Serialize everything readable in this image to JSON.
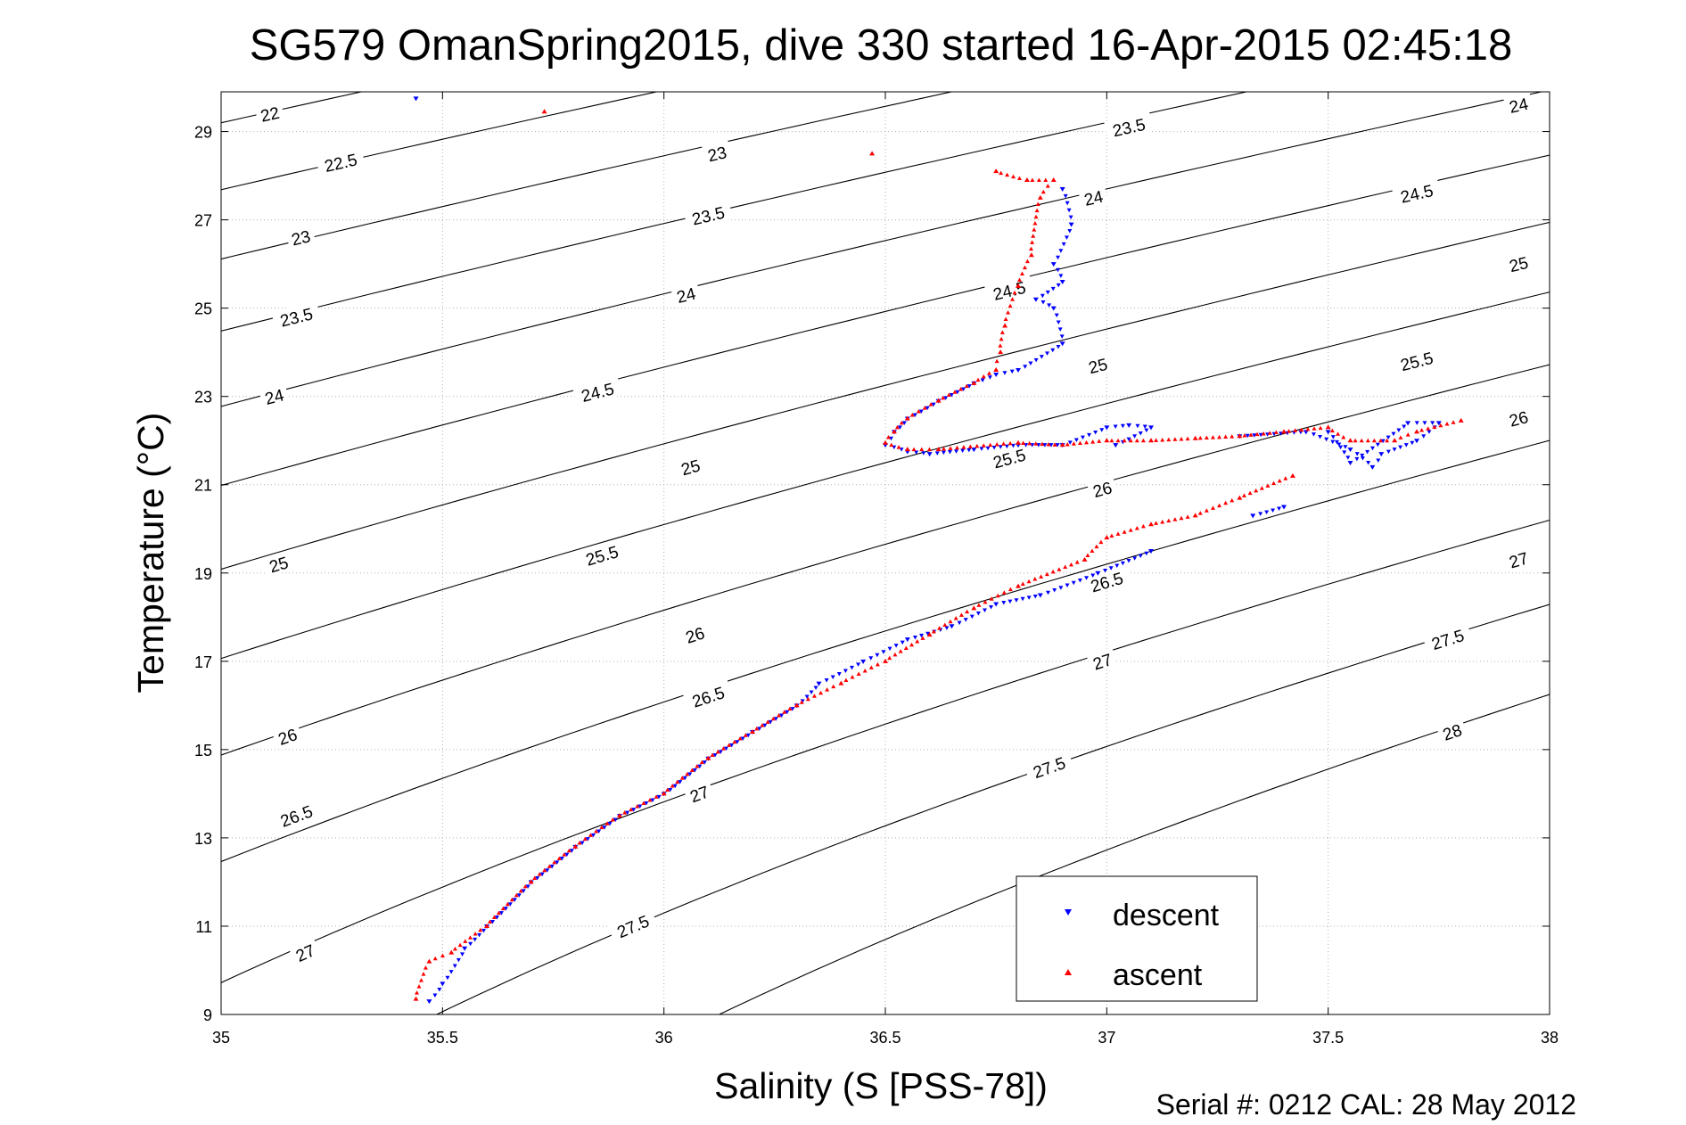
{
  "chart_data": {
    "type": "scatter",
    "title": "SG579 OmanSpring2015, dive 330 started 16-Apr-2015 02:45:18",
    "xlabel": "Salinity (S [PSS-78])",
    "ylabel": "Temperature (°C)",
    "footer": "Serial #: 0212  CAL: 28 May 2012",
    "xlim": [
      35,
      38
    ],
    "ylim": [
      9,
      29.9
    ],
    "xticks": [
      "35",
      "35.5",
      "36",
      "36.5",
      "37",
      "37.5",
      "38"
    ],
    "yticks": [
      "9",
      "11",
      "13",
      "15",
      "17",
      "19",
      "21",
      "23",
      "25",
      "27",
      "29"
    ],
    "grid": true,
    "legend_position": "bottom-right",
    "colors": {
      "descent": "#0000ff",
      "ascent": "#ff0000",
      "isopycnal": "#000000"
    },
    "isopycnals": [
      {
        "sigma": 22,
        "label": "22",
        "label_at": [
          35.11,
          29.4
        ]
      },
      {
        "sigma": 22.5,
        "label": "22.5",
        "label_at": [
          35.27,
          28.3
        ]
      },
      {
        "sigma": 23,
        "label": "23",
        "label_at": [
          35.18,
          26.6
        ],
        "label2": "23",
        "label2_at": [
          36.12,
          28.5
        ]
      },
      {
        "sigma": 23.5,
        "label": "23.5",
        "label_at": [
          35.17,
          24.8
        ],
        "label2": "23.5",
        "label2_at": [
          36.1,
          27.1
        ],
        "label3": "23.5",
        "label3_at": [
          37.05,
          29.1
        ]
      },
      {
        "sigma": 24,
        "label": "24",
        "label_at": [
          35.12,
          23.0
        ],
        "label2": "24",
        "label2_at": [
          36.05,
          25.3
        ],
        "label3": "24",
        "label3_at": [
          36.97,
          27.5
        ],
        "label4": "24",
        "label4_at": [
          37.93,
          29.6
        ]
      },
      {
        "sigma": 24.5,
        "label": "24.5",
        "label_at": [
          35.85,
          23.1
        ],
        "label2": "24.5",
        "label2_at": [
          36.78,
          25.4
        ],
        "label3": "24.5",
        "label3_at": [
          37.7,
          27.6
        ]
      },
      {
        "sigma": 25,
        "label": "25",
        "label_at": [
          35.13,
          19.2
        ],
        "label2": "25",
        "label2_at": [
          36.06,
          21.4
        ],
        "label3": "25",
        "label3_at": [
          36.98,
          23.7
        ],
        "label4": "25",
        "label4_at": [
          37.93,
          26.0
        ]
      },
      {
        "sigma": 25.5,
        "label": "25.5",
        "label_at": [
          35.86,
          19.4
        ],
        "label2": "25.5",
        "label2_at": [
          36.78,
          21.6
        ],
        "label3": "25.5",
        "label3_at": [
          37.7,
          23.8
        ]
      },
      {
        "sigma": 26,
        "label": "26",
        "label_at": [
          35.15,
          15.3
        ],
        "label2": "26",
        "label2_at": [
          36.07,
          17.6
        ],
        "label3": "26",
        "label3_at": [
          36.99,
          20.9
        ],
        "label4": "26",
        "label4_at": [
          37.93,
          22.5
        ]
      },
      {
        "sigma": 26.5,
        "label": "26.5",
        "label_at": [
          35.17,
          13.5
        ],
        "label2": "26.5",
        "label2_at": [
          36.1,
          16.2
        ],
        "label3": "26.5",
        "label3_at": [
          37.0,
          18.8
        ]
      },
      {
        "sigma": 27,
        "label": "27",
        "label_at": [
          35.19,
          10.4
        ],
        "label2": "27",
        "label2_at": [
          36.08,
          14.0
        ],
        "label3": "27",
        "label3_at": [
          36.99,
          17.0
        ],
        "label4": "27",
        "label4_at": [
          37.93,
          19.3
        ]
      },
      {
        "sigma": 27.5,
        "label": "27.5",
        "label_at": [
          35.93,
          11.0
        ],
        "label2": "27.5",
        "label2_at": [
          36.87,
          14.6
        ],
        "label3": "27.5",
        "label3_at": [
          37.77,
          17.5
        ]
      },
      {
        "sigma": 28,
        "label": "28",
        "label_at": [
          37.78,
          15.4
        ]
      }
    ],
    "series": [
      {
        "name": "descent",
        "marker": "triangle-down",
        "points": [
          [
            35.44,
            29.75
          ],
          [
            36.9,
            27.7
          ],
          [
            36.92,
            26.9
          ],
          [
            36.88,
            26.0
          ],
          [
            36.9,
            25.6
          ],
          [
            36.84,
            25.2
          ],
          [
            36.88,
            25.0
          ],
          [
            36.9,
            24.2
          ],
          [
            36.8,
            23.6
          ],
          [
            36.75,
            23.5
          ],
          [
            36.7,
            23.3
          ],
          [
            36.62,
            22.9
          ],
          [
            36.55,
            22.5
          ],
          [
            36.52,
            22.2
          ],
          [
            36.5,
            21.9
          ],
          [
            36.55,
            21.75
          ],
          [
            36.6,
            21.7
          ],
          [
            36.7,
            21.8
          ],
          [
            36.8,
            21.9
          ],
          [
            36.9,
            21.9
          ],
          [
            37.0,
            22.3
          ],
          [
            37.05,
            22.35
          ],
          [
            37.1,
            22.3
          ],
          [
            37.02,
            21.9
          ],
          [
            37.3,
            22.1
          ],
          [
            37.45,
            22.2
          ],
          [
            37.55,
            21.8
          ],
          [
            37.6,
            21.4
          ],
          [
            37.62,
            21.7
          ],
          [
            37.7,
            22.0
          ],
          [
            37.75,
            22.4
          ],
          [
            37.68,
            22.4
          ],
          [
            37.55,
            21.5
          ],
          [
            37.5,
            22.2
          ],
          [
            37.4,
            20.5
          ],
          [
            37.33,
            20.3
          ],
          [
            37.1,
            19.5
          ],
          [
            36.98,
            19.0
          ],
          [
            36.85,
            18.5
          ],
          [
            36.75,
            18.3
          ],
          [
            36.65,
            17.8
          ],
          [
            36.55,
            17.5
          ],
          [
            36.45,
            17.0
          ],
          [
            36.35,
            16.5
          ],
          [
            36.3,
            16.0
          ],
          [
            36.2,
            15.4
          ],
          [
            36.1,
            14.8
          ],
          [
            36.0,
            14.0
          ],
          [
            35.9,
            13.5
          ],
          [
            35.8,
            12.8
          ],
          [
            35.7,
            12.0
          ],
          [
            35.6,
            11.0
          ],
          [
            35.55,
            10.5
          ],
          [
            35.5,
            9.7
          ],
          [
            35.47,
            9.3
          ]
        ]
      },
      {
        "name": "ascent",
        "marker": "triangle-up",
        "points": [
          [
            35.73,
            29.45
          ],
          [
            36.47,
            28.5
          ],
          [
            36.75,
            28.1
          ],
          [
            36.82,
            27.9
          ],
          [
            36.88,
            27.9
          ],
          [
            36.85,
            27.5
          ],
          [
            36.83,
            26.2
          ],
          [
            36.8,
            25.5
          ],
          [
            36.77,
            24.6
          ],
          [
            36.76,
            24.0
          ],
          [
            36.75,
            23.6
          ],
          [
            36.7,
            23.3
          ],
          [
            36.62,
            22.9
          ],
          [
            36.55,
            22.5
          ],
          [
            36.52,
            22.2
          ],
          [
            36.5,
            21.95
          ],
          [
            36.55,
            21.8
          ],
          [
            36.62,
            21.8
          ],
          [
            36.8,
            21.95
          ],
          [
            36.9,
            21.9
          ],
          [
            37.0,
            22.0
          ],
          [
            37.1,
            22.0
          ],
          [
            37.2,
            22.05
          ],
          [
            37.3,
            22.1
          ],
          [
            37.4,
            22.2
          ],
          [
            37.5,
            22.3
          ],
          [
            37.55,
            22.0
          ],
          [
            37.65,
            22.0
          ],
          [
            37.7,
            22.2
          ],
          [
            37.8,
            22.45
          ],
          [
            37.42,
            21.2
          ],
          [
            37.3,
            20.7
          ],
          [
            37.2,
            20.3
          ],
          [
            37.1,
            20.1
          ],
          [
            37.0,
            19.8
          ],
          [
            36.95,
            19.3
          ],
          [
            36.8,
            18.7
          ],
          [
            36.7,
            18.2
          ],
          [
            36.6,
            17.6
          ],
          [
            36.5,
            17.0
          ],
          [
            36.4,
            16.5
          ],
          [
            36.3,
            16.0
          ],
          [
            36.2,
            15.4
          ],
          [
            36.1,
            14.8
          ],
          [
            36.0,
            14.0
          ],
          [
            35.9,
            13.5
          ],
          [
            35.8,
            12.8
          ],
          [
            35.7,
            12.0
          ],
          [
            35.6,
            11.0
          ],
          [
            35.52,
            10.4
          ],
          [
            35.47,
            10.2
          ],
          [
            35.44,
            9.35
          ]
        ]
      }
    ]
  }
}
